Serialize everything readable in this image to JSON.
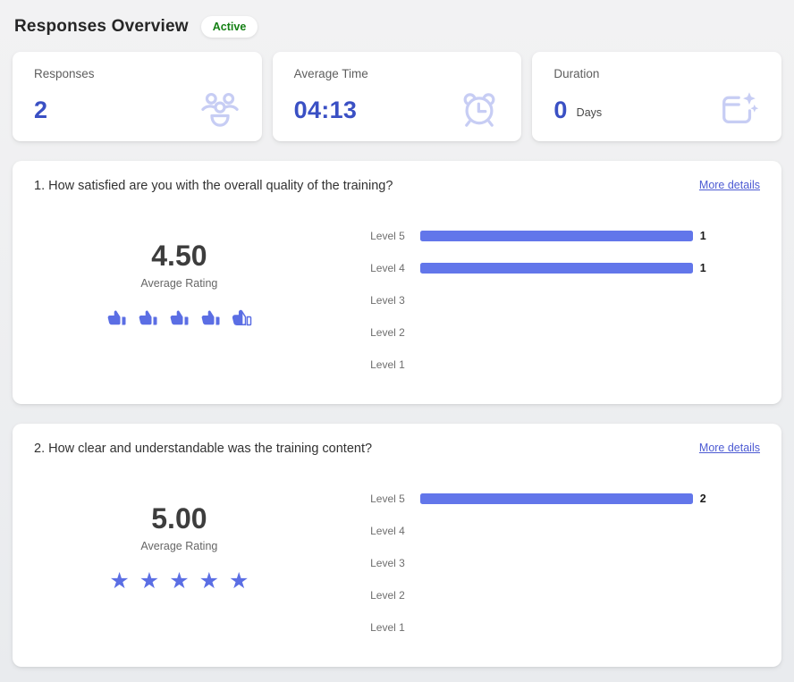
{
  "page": {
    "title": "Responses Overview",
    "status_badge": "Active"
  },
  "colors": {
    "accent_blue": "#3a50c4",
    "bar_blue": "#6276ea",
    "rating_icon_blue": "#5b6ee4",
    "stat_icon_lavender": "#c7cdf4",
    "badge_green": "#148014",
    "link_blue": "#4d5bd3"
  },
  "stats": [
    {
      "label": "Responses",
      "value": "2",
      "suffix": "",
      "icon": "people-group-icon"
    },
    {
      "label": "Average Time",
      "value": "04:13",
      "suffix": "",
      "icon": "alarm-clock-icon"
    },
    {
      "label": "Duration",
      "value": "0",
      "suffix": "Days",
      "icon": "calendar-sparkle-icon"
    }
  ],
  "questions": [
    {
      "title": "1. How satisfied are you with the overall quality of the training?",
      "more_details_label": "More details",
      "average_rating": "4.50",
      "average_rating_label": "Average Rating",
      "rating_value": 4.5,
      "rating_max": 5,
      "rating_icon": "thumb",
      "chart_data": {
        "type": "bar",
        "orientation": "horizontal",
        "categories": [
          "Level 5",
          "Level 4",
          "Level 3",
          "Level 2",
          "Level 1"
        ],
        "values": [
          1,
          1,
          0,
          0,
          0
        ],
        "bar_color": "#6276ea"
      }
    },
    {
      "title": "2. How clear and understandable was the training content?",
      "more_details_label": "More details",
      "average_rating": "5.00",
      "average_rating_label": "Average Rating",
      "rating_value": 5,
      "rating_max": 5,
      "rating_icon": "star",
      "chart_data": {
        "type": "bar",
        "orientation": "horizontal",
        "categories": [
          "Level 5",
          "Level 4",
          "Level 3",
          "Level 2",
          "Level 1"
        ],
        "values": [
          2,
          0,
          0,
          0,
          0
        ],
        "bar_color": "#6276ea"
      }
    }
  ]
}
